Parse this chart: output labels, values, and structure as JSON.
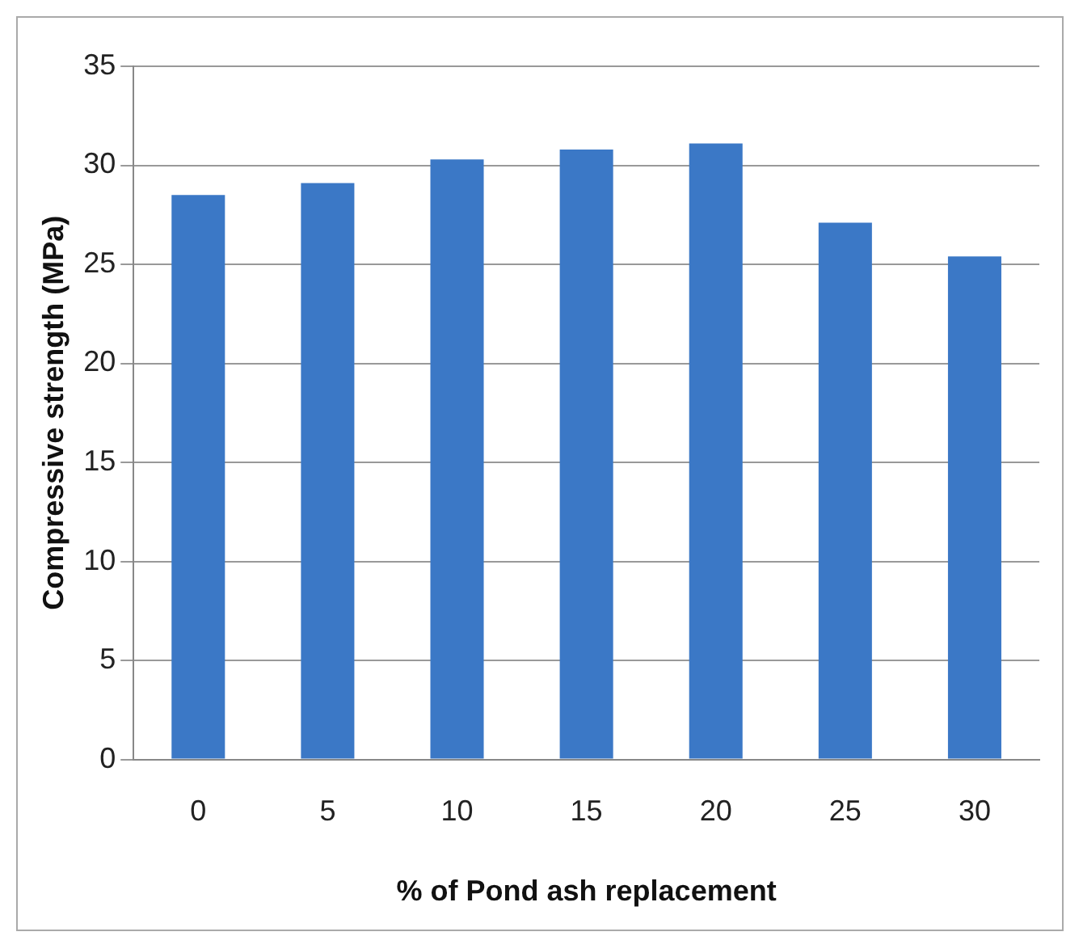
{
  "chart_data": {
    "type": "bar",
    "xlabel": "% of Pond ash replacement",
    "ylabel": "Compressive strength (MPa)",
    "categories": [
      "0",
      "5",
      "10",
      "15",
      "20",
      "25",
      "30"
    ],
    "values": [
      28.5,
      29.1,
      30.3,
      30.8,
      31.1,
      27.1,
      25.4
    ],
    "color": "#3b78c6",
    "ylim": [
      0,
      35
    ],
    "yticks": [
      0,
      5,
      10,
      15,
      20,
      25,
      30,
      35
    ],
    "grid": "y",
    "legend": false
  }
}
